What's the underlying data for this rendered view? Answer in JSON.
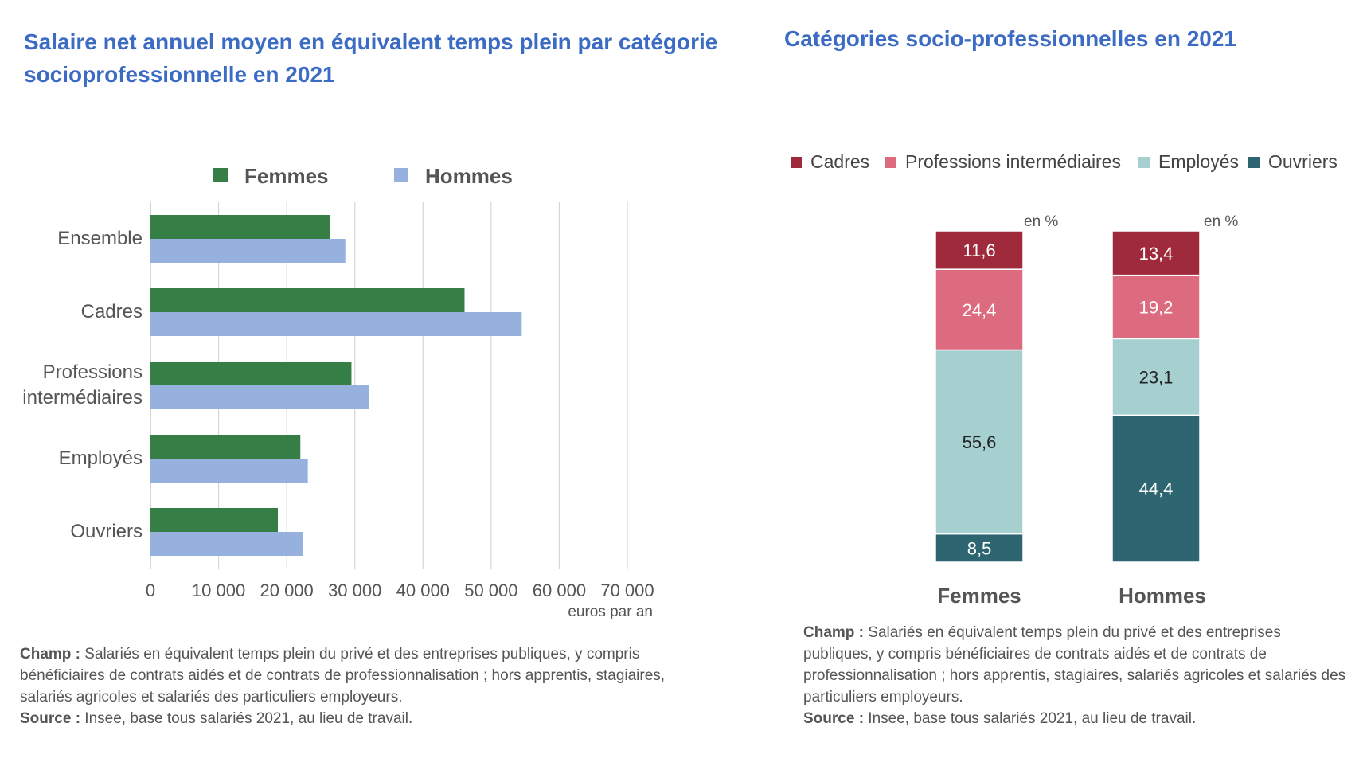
{
  "left": {
    "title": "Salaire net annuel moyen en équivalent temps plein par catégorie socioprofessionnelle en 2021",
    "unit": "euros par an",
    "note_champ_label": "Champ :",
    "note_champ_text": " Salariés en équivalent temps plein du privé et des entreprises publiques, y compris bénéficiaires de contrats aidés et de contrats de professionnalisation ;  hors apprentis, stagiaires, salariés agricoles et salariés des particuliers employeurs.",
    "note_source_label": "Source :",
    "note_source_text": " Insee, base tous salariés 2021, au lieu de travail."
  },
  "right": {
    "title": "Catégories socio-professionnelles en 2021",
    "unit_f": "en %",
    "unit_h": "en %",
    "note_champ_label": "Champ :",
    "note_champ_text": " Salariés en  équivalent temps plein  du privé et des entreprises publiques, y compris bénéficiaires de contrats aidés et de contrats de professionnalisation ;  hors apprentis, stagiaires, salariés agricoles et salariés des particuliers employeurs.",
    "note_source_label": "Source :",
    "note_source_text": " Insee, base tous salariés 2021, au lieu de travail."
  },
  "chart_data": [
    {
      "type": "bar",
      "orientation": "horizontal",
      "title": "Salaire net annuel moyen en équivalent temps plein par catégorie socioprofessionnelle en 2021",
      "categories": [
        "Ensemble",
        "Cadres",
        "Professions intermédiaires",
        "Employés",
        "Ouvriers"
      ],
      "category_lines": [
        [
          "Ensemble"
        ],
        [
          "Cadres"
        ],
        [
          "Professions",
          "intermédiaires"
        ],
        [
          "Employés"
        ],
        [
          "Ouvriers"
        ]
      ],
      "series": [
        {
          "name": "Femmes",
          "color": "#357e45",
          "values": [
            26300,
            46100,
            29500,
            22000,
            18700
          ]
        },
        {
          "name": "Hommes",
          "color": "#97b1df",
          "values": [
            28600,
            54500,
            32100,
            23100,
            22400
          ]
        }
      ],
      "xlabel": "euros par an",
      "xlim": [
        0,
        70000
      ],
      "xticks": [
        0,
        10000,
        20000,
        30000,
        40000,
        50000,
        60000,
        70000
      ],
      "xtick_labels": [
        "0",
        "10 000",
        "20 000",
        "30 000",
        "40 000",
        "50 000",
        "60 000",
        "70 000"
      ],
      "grid": true,
      "legend_position": "top"
    },
    {
      "type": "bar",
      "stacked": true,
      "title": "Catégories socio-professionnelles en 2021",
      "categories": [
        "Femmes",
        "Hommes"
      ],
      "unit": "en %",
      "series": [
        {
          "name": "Cadres",
          "color": "#9e2a3c",
          "text_color": "#ffffff",
          "values": [
            11.6,
            13.4
          ],
          "labels": [
            "11,6",
            "13,4"
          ]
        },
        {
          "name": "Professions intermédiaires",
          "color": "#dc6b7f",
          "text_color": "#ffffff",
          "values": [
            24.4,
            19.2
          ],
          "labels": [
            "24,4",
            "19,2"
          ]
        },
        {
          "name": "Employés",
          "color": "#a6cfd0",
          "text_color": "#222222",
          "values": [
            55.6,
            23.1
          ],
          "labels": [
            "55,6",
            "23,1"
          ]
        },
        {
          "name": "Ouvriers",
          "color": "#2d6571",
          "text_color": "#ffffff",
          "values": [
            8.5,
            44.4
          ],
          "labels": [
            "8,5",
            "44,4"
          ]
        }
      ],
      "legend_position": "top"
    }
  ]
}
